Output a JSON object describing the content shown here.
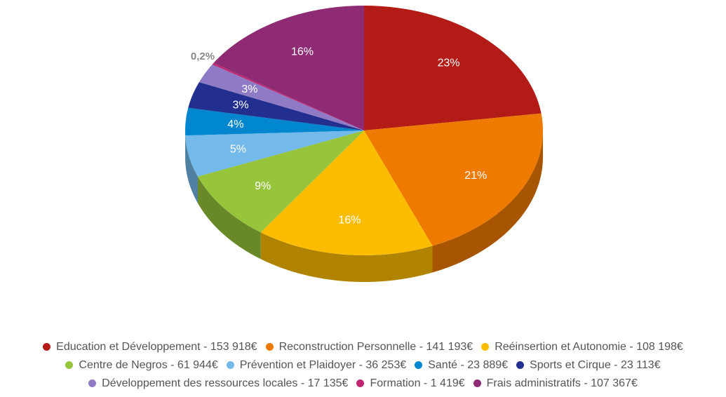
{
  "chart_data": {
    "type": "pie",
    "style": "3d",
    "title": "",
    "legend_position": "bottom",
    "series": [
      {
        "name": "Education et Développement",
        "value": 153918,
        "legend": "Education et Développement - 153 918€",
        "label": "23%",
        "color": "#B31B16"
      },
      {
        "name": "Reconstruction Personnelle",
        "value": 141193,
        "legend": "Reconstruction Personnelle - 141 193€",
        "label": "21%",
        "color": "#EF7A00"
      },
      {
        "name": "Reéinsertion et Autonomie",
        "value": 108198,
        "legend": "Reéinsertion et Autonomie - 108 198€",
        "label": "16%",
        "color": "#FCBD00"
      },
      {
        "name": "Centre de Negros",
        "value": 61944,
        "legend": "Centre de Negros - 61 944€",
        "label": "9%",
        "color": "#96C43A"
      },
      {
        "name": "Prévention et Plaidoyer",
        "value": 36253,
        "legend": "Prévention et Plaidoyer - 36 253€",
        "label": "5%",
        "color": "#73B9E9"
      },
      {
        "name": "Santé",
        "value": 23889,
        "legend": "Santé - 23 889€",
        "label": "4%",
        "color": "#0086CF"
      },
      {
        "name": "Sports et Cirque",
        "value": 23113,
        "legend": "Sports et Cirque - 23 113€",
        "label": "3%",
        "color": "#232F8E"
      },
      {
        "name": "Développement des ressources locales",
        "value": 17135,
        "legend": "Développement des ressources locales - 17 135€",
        "label": "3%",
        "color": "#8E7AC5"
      },
      {
        "name": "Formation",
        "value": 1419,
        "legend": "Formation - 1 419€",
        "label": "0,2%",
        "color": "#C2256F"
      },
      {
        "name": "Frais administratifs",
        "value": 107367,
        "legend": "Frais administratifs - 107 367€",
        "label": "16%",
        "color": "#8F2B74"
      }
    ]
  }
}
